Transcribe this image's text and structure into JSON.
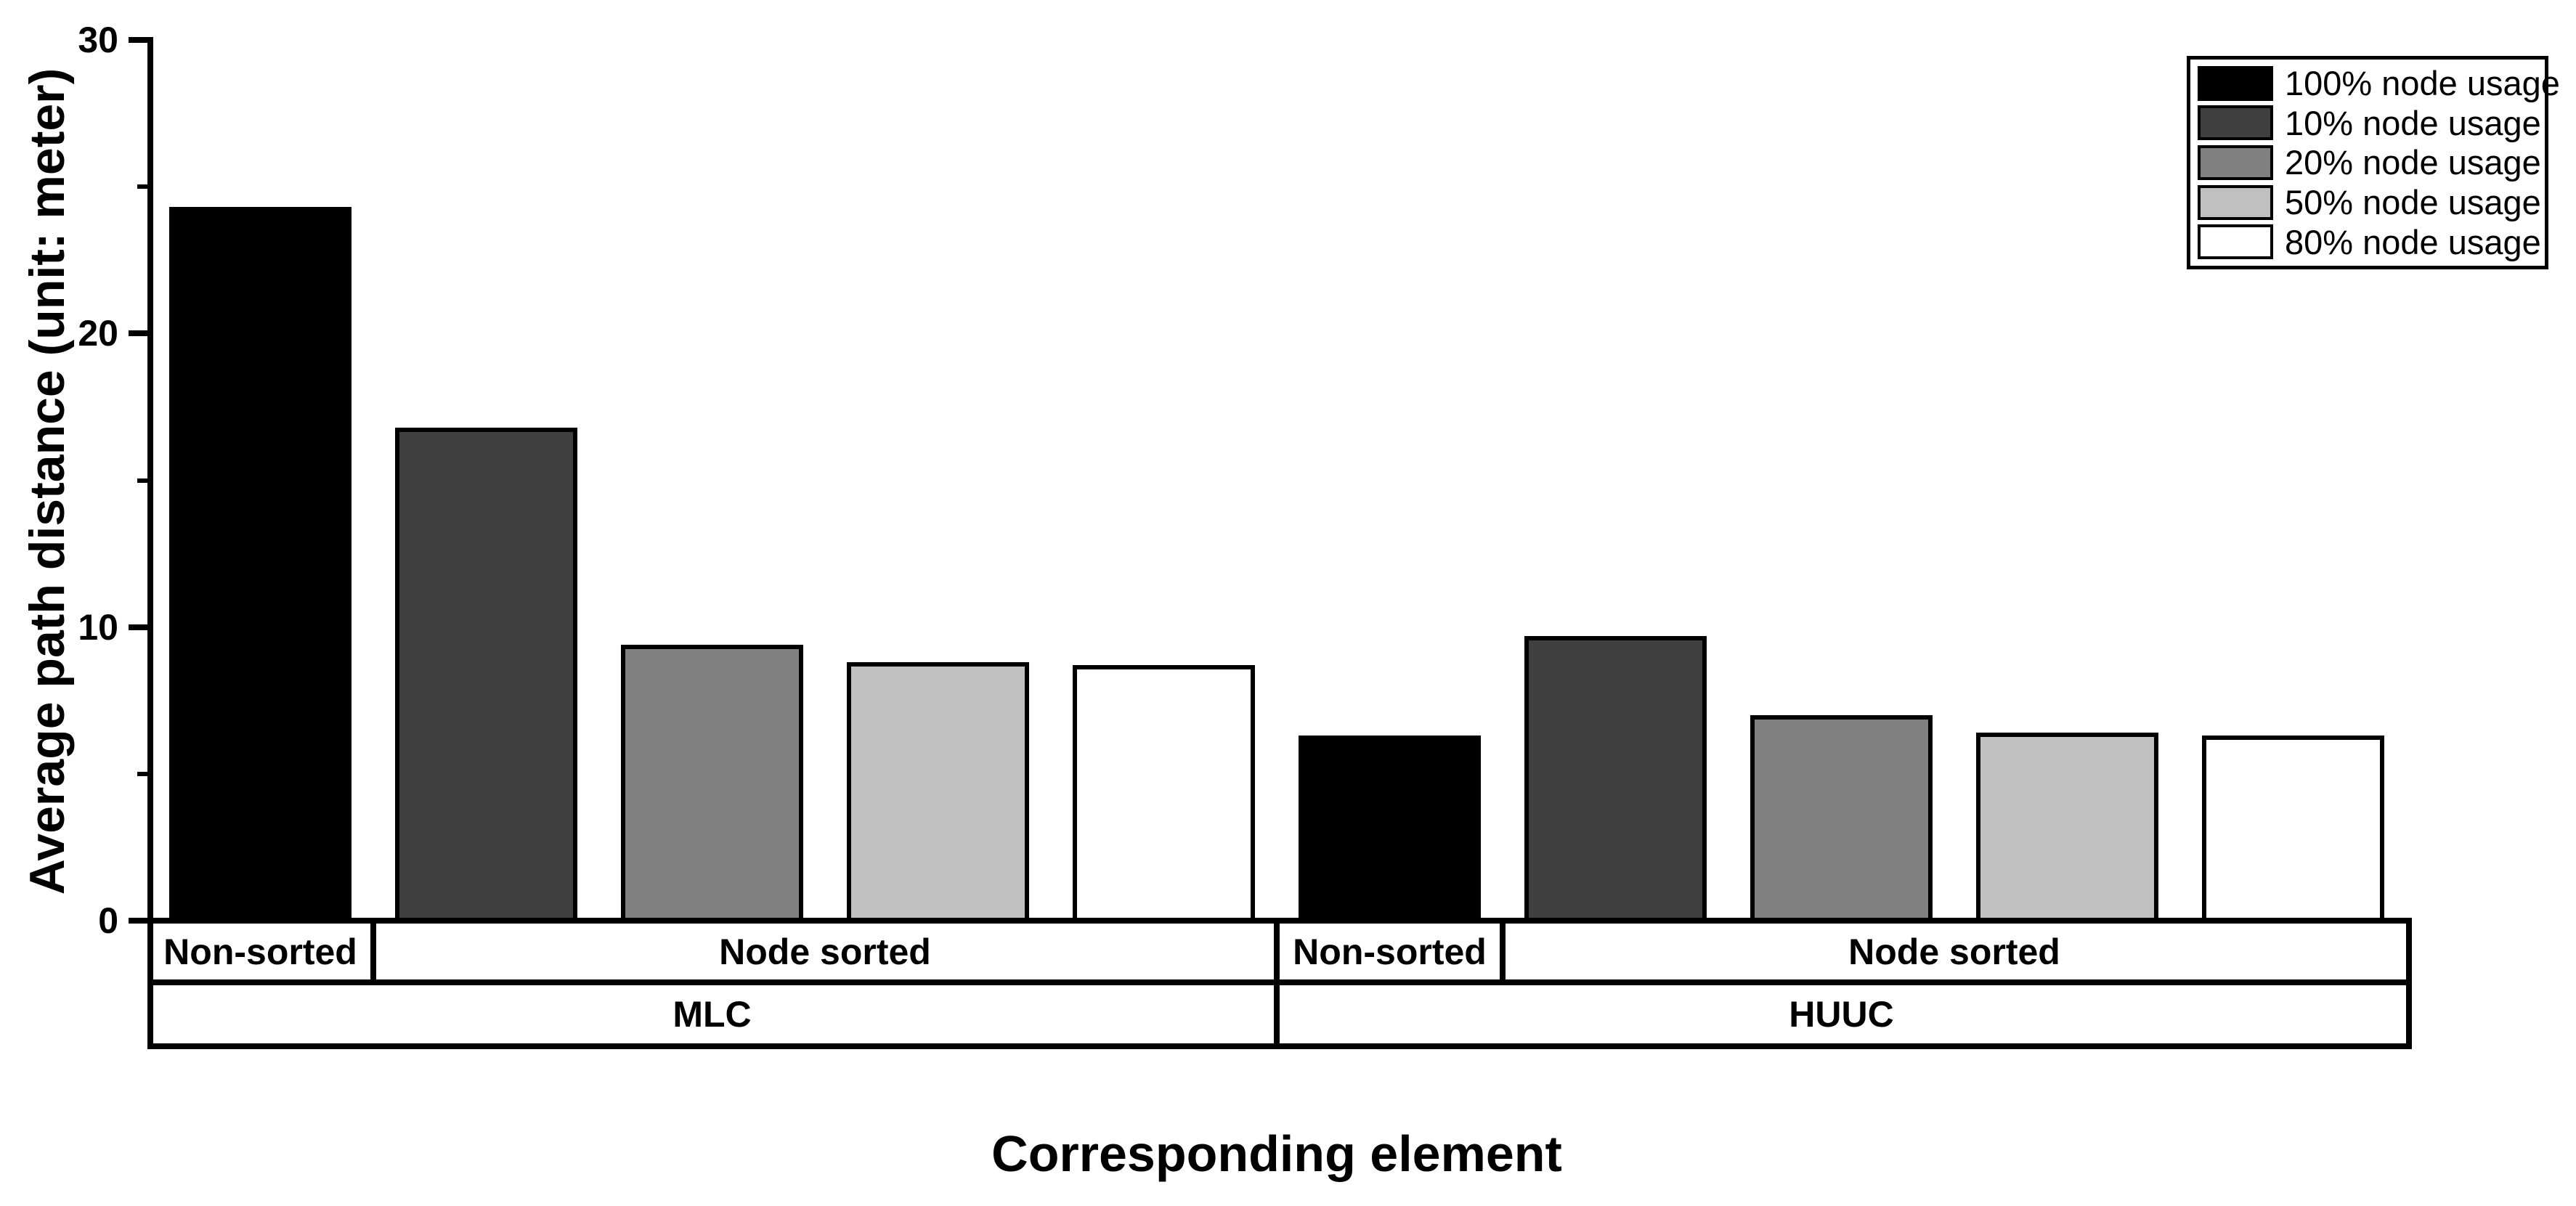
{
  "chart_data": {
    "type": "bar",
    "title": "",
    "xlabel": "Corresponding element",
    "ylabel": "Average path distance (unit: meter)",
    "ylim": [
      0,
      30
    ],
    "yticks_major": [
      0,
      10,
      20,
      30
    ],
    "ytick_labels": [
      "0",
      "10",
      "20",
      "30"
    ],
    "yticks_minor": [
      5,
      15,
      25
    ],
    "grid": "off",
    "legend_position": "top-right",
    "legend": [
      {
        "label": "100% node usage",
        "color": "#000000"
      },
      {
        "label": "10% node usage",
        "color": "#404040"
      },
      {
        "label": "20% node usage",
        "color": "#808080"
      },
      {
        "label": "50% node usage",
        "color": "#c0c0c0"
      },
      {
        "label": "80% node usage",
        "color": "#ffffff"
      }
    ],
    "bar_edge_color": "#000000",
    "background_color": "#ffffff",
    "groups": [
      {
        "label": "MLC",
        "subgroups": [
          {
            "label": "Non-sorted",
            "bars": [
              {
                "series": "100% node usage",
                "value": 24.3
              }
            ]
          },
          {
            "label": "Node sorted",
            "bars": [
              {
                "series": "10% node usage",
                "value": 16.8
              },
              {
                "series": "20% node usage",
                "value": 9.4
              },
              {
                "series": "50% node usage",
                "value": 8.8
              },
              {
                "series": "80% node usage",
                "value": 8.7
              }
            ]
          }
        ]
      },
      {
        "label": "HUUC",
        "subgroups": [
          {
            "label": "Non-sorted",
            "bars": [
              {
                "series": "100% node usage",
                "value": 6.3
              }
            ]
          },
          {
            "label": "Node sorted",
            "bars": [
              {
                "series": "10% node usage",
                "value": 9.7
              },
              {
                "series": "20% node usage",
                "value": 7.0
              },
              {
                "series": "50% node usage",
                "value": 6.4
              },
              {
                "series": "80% node usage",
                "value": 6.3
              }
            ]
          }
        ]
      }
    ]
  }
}
